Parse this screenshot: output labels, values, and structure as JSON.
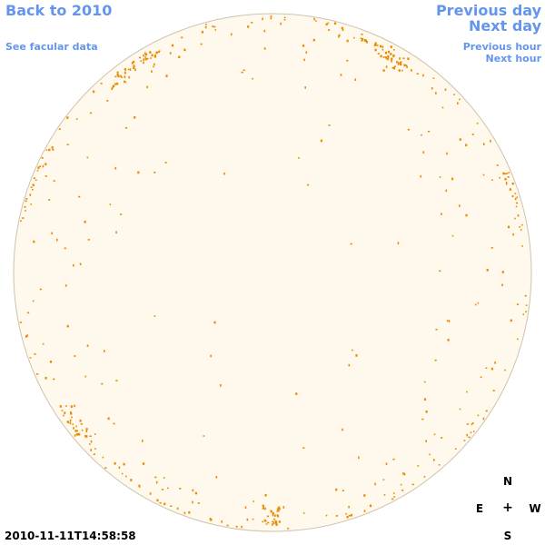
{
  "nav": {
    "back_label": "Back to 2010",
    "facular_label": "See facular data",
    "prev_day_label": "Previous day",
    "next_day_label": "Next day",
    "prev_hour_label": "Previous hour",
    "next_hour_label": "Next hour"
  },
  "compass": {
    "north": "N",
    "east": "E",
    "center": "+",
    "west": "W",
    "south": "S"
  },
  "timestamp": "2010-11-11T14:58:58",
  "colors": {
    "link": "#6495ED",
    "disk_fill": "#FFF8EC",
    "disk_stroke": "#CFC3AE",
    "facula": "#E88C00"
  },
  "faculae": {
    "clusters": [
      {
        "region": "north-east-limb",
        "lat": 52,
        "lon": -62,
        "count": 40
      },
      {
        "region": "east-limb",
        "lat": 22,
        "lon": -80,
        "count": 20
      },
      {
        "region": "west-limb",
        "lat": 16,
        "lon": 80,
        "count": 30
      },
      {
        "region": "north-west-limb",
        "lat": 58,
        "lon": 55,
        "count": 45
      },
      {
        "region": "south-east-limb",
        "lat": -38,
        "lon": -70,
        "count": 30
      },
      {
        "region": "south-limb",
        "lat": -70,
        "lon": 0,
        "count": 30
      }
    ]
  }
}
